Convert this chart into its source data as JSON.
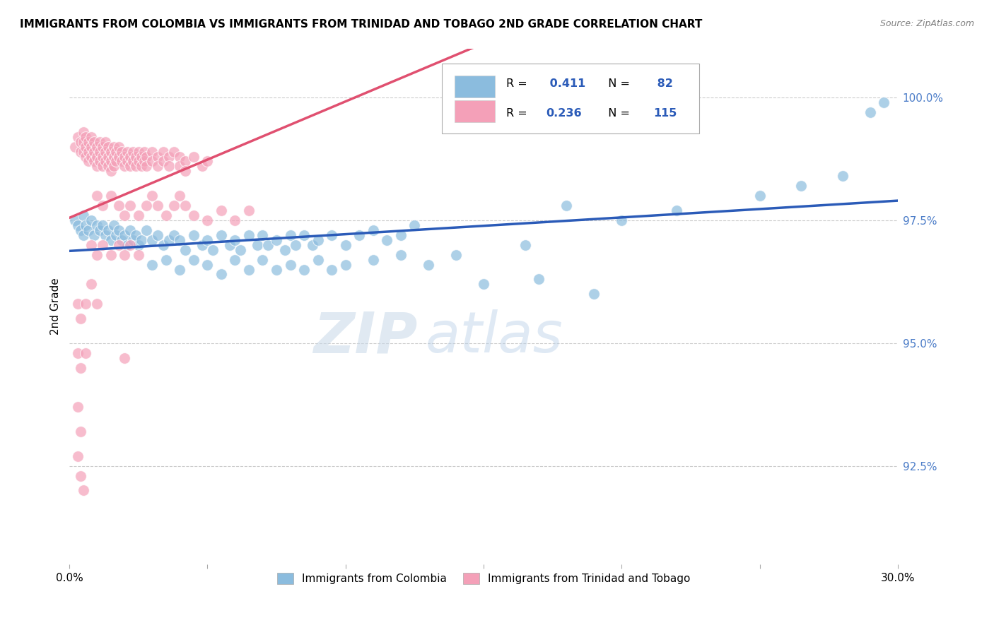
{
  "title": "IMMIGRANTS FROM COLOMBIA VS IMMIGRANTS FROM TRINIDAD AND TOBAGO 2ND GRADE CORRELATION CHART",
  "source": "Source: ZipAtlas.com",
  "ylabel": "2nd Grade",
  "ytick_labels": [
    "92.5%",
    "95.0%",
    "97.5%",
    "100.0%"
  ],
  "ytick_values": [
    0.925,
    0.95,
    0.975,
    1.0
  ],
  "xlim": [
    0.0,
    0.3
  ],
  "ylim": [
    0.905,
    1.01
  ],
  "color_colombia": "#8BBCDE",
  "color_trinidad": "#F4A0B8",
  "color_line_colombia": "#2B5BB8",
  "color_line_trinidad": "#E05070",
  "color_axis_right": "#4B7CC8",
  "watermark_zip": "ZIP",
  "watermark_atlas": "atlas",
  "colombia_points": [
    [
      0.002,
      0.975
    ],
    [
      0.003,
      0.974
    ],
    [
      0.004,
      0.973
    ],
    [
      0.005,
      0.976
    ],
    [
      0.005,
      0.972
    ],
    [
      0.006,
      0.974
    ],
    [
      0.007,
      0.973
    ],
    [
      0.008,
      0.975
    ],
    [
      0.009,
      0.972
    ],
    [
      0.01,
      0.974
    ],
    [
      0.011,
      0.973
    ],
    [
      0.012,
      0.974
    ],
    [
      0.013,
      0.972
    ],
    [
      0.014,
      0.973
    ],
    [
      0.015,
      0.971
    ],
    [
      0.016,
      0.974
    ],
    [
      0.017,
      0.972
    ],
    [
      0.018,
      0.973
    ],
    [
      0.019,
      0.971
    ],
    [
      0.02,
      0.972
    ],
    [
      0.021,
      0.97
    ],
    [
      0.022,
      0.973
    ],
    [
      0.023,
      0.971
    ],
    [
      0.024,
      0.972
    ],
    [
      0.025,
      0.97
    ],
    [
      0.026,
      0.971
    ],
    [
      0.028,
      0.973
    ],
    [
      0.03,
      0.971
    ],
    [
      0.032,
      0.972
    ],
    [
      0.034,
      0.97
    ],
    [
      0.036,
      0.971
    ],
    [
      0.038,
      0.972
    ],
    [
      0.04,
      0.971
    ],
    [
      0.042,
      0.969
    ],
    [
      0.045,
      0.972
    ],
    [
      0.048,
      0.97
    ],
    [
      0.05,
      0.971
    ],
    [
      0.052,
      0.969
    ],
    [
      0.055,
      0.972
    ],
    [
      0.058,
      0.97
    ],
    [
      0.06,
      0.971
    ],
    [
      0.062,
      0.969
    ],
    [
      0.065,
      0.972
    ],
    [
      0.068,
      0.97
    ],
    [
      0.07,
      0.972
    ],
    [
      0.072,
      0.97
    ],
    [
      0.075,
      0.971
    ],
    [
      0.078,
      0.969
    ],
    [
      0.08,
      0.972
    ],
    [
      0.082,
      0.97
    ],
    [
      0.085,
      0.972
    ],
    [
      0.088,
      0.97
    ],
    [
      0.09,
      0.971
    ],
    [
      0.095,
      0.972
    ],
    [
      0.1,
      0.97
    ],
    [
      0.105,
      0.972
    ],
    [
      0.11,
      0.973
    ],
    [
      0.115,
      0.971
    ],
    [
      0.12,
      0.972
    ],
    [
      0.125,
      0.974
    ],
    [
      0.03,
      0.966
    ],
    [
      0.035,
      0.967
    ],
    [
      0.04,
      0.965
    ],
    [
      0.045,
      0.967
    ],
    [
      0.05,
      0.966
    ],
    [
      0.055,
      0.964
    ],
    [
      0.06,
      0.967
    ],
    [
      0.065,
      0.965
    ],
    [
      0.07,
      0.967
    ],
    [
      0.075,
      0.965
    ],
    [
      0.08,
      0.966
    ],
    [
      0.085,
      0.965
    ],
    [
      0.09,
      0.967
    ],
    [
      0.095,
      0.965
    ],
    [
      0.1,
      0.966
    ],
    [
      0.11,
      0.967
    ],
    [
      0.12,
      0.968
    ],
    [
      0.13,
      0.966
    ],
    [
      0.14,
      0.968
    ],
    [
      0.165,
      0.97
    ],
    [
      0.15,
      0.962
    ],
    [
      0.17,
      0.963
    ],
    [
      0.19,
      0.96
    ],
    [
      0.18,
      0.978
    ],
    [
      0.2,
      0.975
    ],
    [
      0.22,
      0.977
    ],
    [
      0.25,
      0.98
    ],
    [
      0.265,
      0.982
    ],
    [
      0.28,
      0.984
    ],
    [
      0.29,
      0.997
    ],
    [
      0.295,
      0.999
    ]
  ],
  "trinidad_points": [
    [
      0.002,
      0.99
    ],
    [
      0.003,
      0.992
    ],
    [
      0.004,
      0.991
    ],
    [
      0.004,
      0.989
    ],
    [
      0.005,
      0.993
    ],
    [
      0.005,
      0.991
    ],
    [
      0.005,
      0.989
    ],
    [
      0.006,
      0.992
    ],
    [
      0.006,
      0.99
    ],
    [
      0.006,
      0.988
    ],
    [
      0.007,
      0.991
    ],
    [
      0.007,
      0.989
    ],
    [
      0.007,
      0.987
    ],
    [
      0.008,
      0.992
    ],
    [
      0.008,
      0.99
    ],
    [
      0.008,
      0.988
    ],
    [
      0.009,
      0.991
    ],
    [
      0.009,
      0.989
    ],
    [
      0.009,
      0.987
    ],
    [
      0.01,
      0.99
    ],
    [
      0.01,
      0.988
    ],
    [
      0.01,
      0.986
    ],
    [
      0.011,
      0.991
    ],
    [
      0.011,
      0.989
    ],
    [
      0.011,
      0.987
    ],
    [
      0.012,
      0.99
    ],
    [
      0.012,
      0.988
    ],
    [
      0.012,
      0.986
    ],
    [
      0.013,
      0.991
    ],
    [
      0.013,
      0.989
    ],
    [
      0.013,
      0.987
    ],
    [
      0.014,
      0.99
    ],
    [
      0.014,
      0.988
    ],
    [
      0.014,
      0.986
    ],
    [
      0.015,
      0.989
    ],
    [
      0.015,
      0.987
    ],
    [
      0.015,
      0.985
    ],
    [
      0.016,
      0.99
    ],
    [
      0.016,
      0.988
    ],
    [
      0.016,
      0.986
    ],
    [
      0.017,
      0.989
    ],
    [
      0.017,
      0.987
    ],
    [
      0.018,
      0.99
    ],
    [
      0.018,
      0.988
    ],
    [
      0.019,
      0.989
    ],
    [
      0.019,
      0.987
    ],
    [
      0.02,
      0.988
    ],
    [
      0.02,
      0.986
    ],
    [
      0.021,
      0.989
    ],
    [
      0.021,
      0.987
    ],
    [
      0.022,
      0.988
    ],
    [
      0.022,
      0.986
    ],
    [
      0.023,
      0.989
    ],
    [
      0.023,
      0.987
    ],
    [
      0.024,
      0.988
    ],
    [
      0.024,
      0.986
    ],
    [
      0.025,
      0.989
    ],
    [
      0.025,
      0.987
    ],
    [
      0.026,
      0.988
    ],
    [
      0.026,
      0.986
    ],
    [
      0.027,
      0.989
    ],
    [
      0.027,
      0.987
    ],
    [
      0.028,
      0.988
    ],
    [
      0.028,
      0.986
    ],
    [
      0.03,
      0.989
    ],
    [
      0.03,
      0.987
    ],
    [
      0.032,
      0.988
    ],
    [
      0.032,
      0.986
    ],
    [
      0.034,
      0.989
    ],
    [
      0.034,
      0.987
    ],
    [
      0.036,
      0.988
    ],
    [
      0.036,
      0.986
    ],
    [
      0.038,
      0.989
    ],
    [
      0.04,
      0.988
    ],
    [
      0.04,
      0.986
    ],
    [
      0.042,
      0.987
    ],
    [
      0.042,
      0.985
    ],
    [
      0.045,
      0.988
    ],
    [
      0.048,
      0.986
    ],
    [
      0.05,
      0.987
    ],
    [
      0.01,
      0.98
    ],
    [
      0.012,
      0.978
    ],
    [
      0.015,
      0.98
    ],
    [
      0.018,
      0.978
    ],
    [
      0.02,
      0.976
    ],
    [
      0.022,
      0.978
    ],
    [
      0.025,
      0.976
    ],
    [
      0.028,
      0.978
    ],
    [
      0.03,
      0.98
    ],
    [
      0.032,
      0.978
    ],
    [
      0.035,
      0.976
    ],
    [
      0.038,
      0.978
    ],
    [
      0.04,
      0.98
    ],
    [
      0.042,
      0.978
    ],
    [
      0.045,
      0.976
    ],
    [
      0.05,
      0.975
    ],
    [
      0.055,
      0.977
    ],
    [
      0.06,
      0.975
    ],
    [
      0.065,
      0.977
    ],
    [
      0.008,
      0.97
    ],
    [
      0.01,
      0.968
    ],
    [
      0.012,
      0.97
    ],
    [
      0.015,
      0.968
    ],
    [
      0.018,
      0.97
    ],
    [
      0.02,
      0.968
    ],
    [
      0.022,
      0.97
    ],
    [
      0.025,
      0.968
    ],
    [
      0.008,
      0.962
    ],
    [
      0.01,
      0.958
    ],
    [
      0.003,
      0.958
    ],
    [
      0.004,
      0.955
    ],
    [
      0.006,
      0.958
    ],
    [
      0.003,
      0.948
    ],
    [
      0.004,
      0.945
    ],
    [
      0.006,
      0.948
    ],
    [
      0.02,
      0.947
    ],
    [
      0.003,
      0.937
    ],
    [
      0.004,
      0.932
    ],
    [
      0.003,
      0.927
    ],
    [
      0.004,
      0.923
    ],
    [
      0.005,
      0.92
    ]
  ]
}
